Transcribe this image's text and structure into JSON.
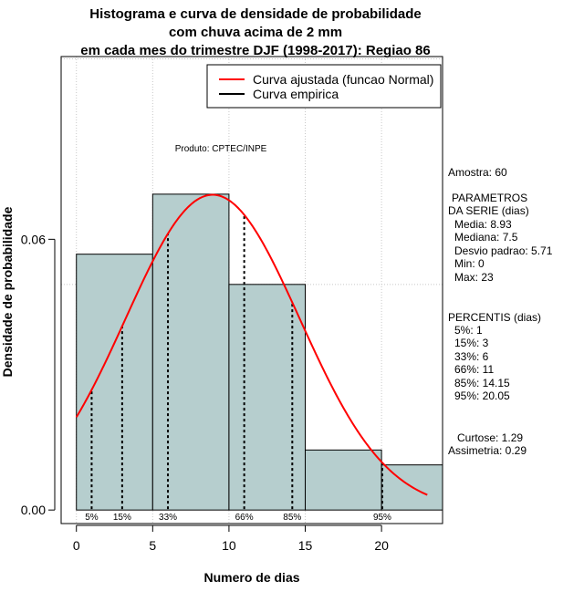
{
  "chart_data": {
    "type": "histogram",
    "title": [
      "Histograma e curva de densidade de probabilidade",
      "com chuva acima de 2 mm",
      "em cada mes do trimestre DJF (1998-2017): Regiao 86"
    ],
    "xlabel": "Numero de dias",
    "ylabel": "Densidade de probabilidade",
    "xlim": [
      -1,
      24
    ],
    "ylim": [
      -0.003,
      0.1005
    ],
    "x_ticks": [
      0,
      5,
      10,
      15,
      20
    ],
    "y_ticks": [
      0.0,
      0.06
    ],
    "y_tick_labels": [
      "0.00",
      "0.06"
    ],
    "grid_x": [
      0,
      5,
      10,
      15,
      20
    ],
    "grid_y": [
      0.05,
      0.1
    ],
    "bins": [
      {
        "start": 0,
        "end": 5,
        "density": 0.0567
      },
      {
        "start": 5,
        "end": 10,
        "density": 0.07
      },
      {
        "start": 10,
        "end": 15,
        "density": 0.05
      },
      {
        "start": 15,
        "end": 20,
        "density": 0.0133
      },
      {
        "start": 20,
        "end": 24,
        "density": 0.01
      }
    ],
    "normal_curve": {
      "mean": 8.93,
      "sd": 5.71,
      "x_from": 0,
      "x_to": 23,
      "label": "Curva ajustada (funcao Normal)",
      "color": "#ff0000"
    },
    "empirical_label": "Curva empirica",
    "percentile_lines": [
      {
        "label": "5%",
        "x": 1
      },
      {
        "label": "15%",
        "x": 3
      },
      {
        "label": "33%",
        "x": 6
      },
      {
        "label": "66%",
        "x": 11
      },
      {
        "label": "85%",
        "x": 14.15
      },
      {
        "label": "95%",
        "x": 20.05
      }
    ],
    "bar_color": "#b6cece",
    "annotation": "Produto: CPTEC/INPE",
    "legend_position": "top-right"
  },
  "stats_panel": {
    "amostra": "Amostra: 60",
    "parametros_title_1": "PARAMETROS",
    "parametros_title_2": "DA SERIE (dias)",
    "media": "Media: 8.93",
    "mediana": "Mediana: 7.5",
    "desvio": "Desvio padrao: 5.71",
    "min": "Min: 0",
    "max": "Max: 23",
    "percentis_title": "PERCENTIS (dias)",
    "p5": "5%: 1",
    "p15": "15%: 3",
    "p33": "33%: 6",
    "p66": "66%: 11",
    "p85": "85%: 14.15",
    "p95": "95%: 20.05",
    "curtose": "Curtose: 1.29",
    "assimetria": "Assimetria: 0.29"
  }
}
